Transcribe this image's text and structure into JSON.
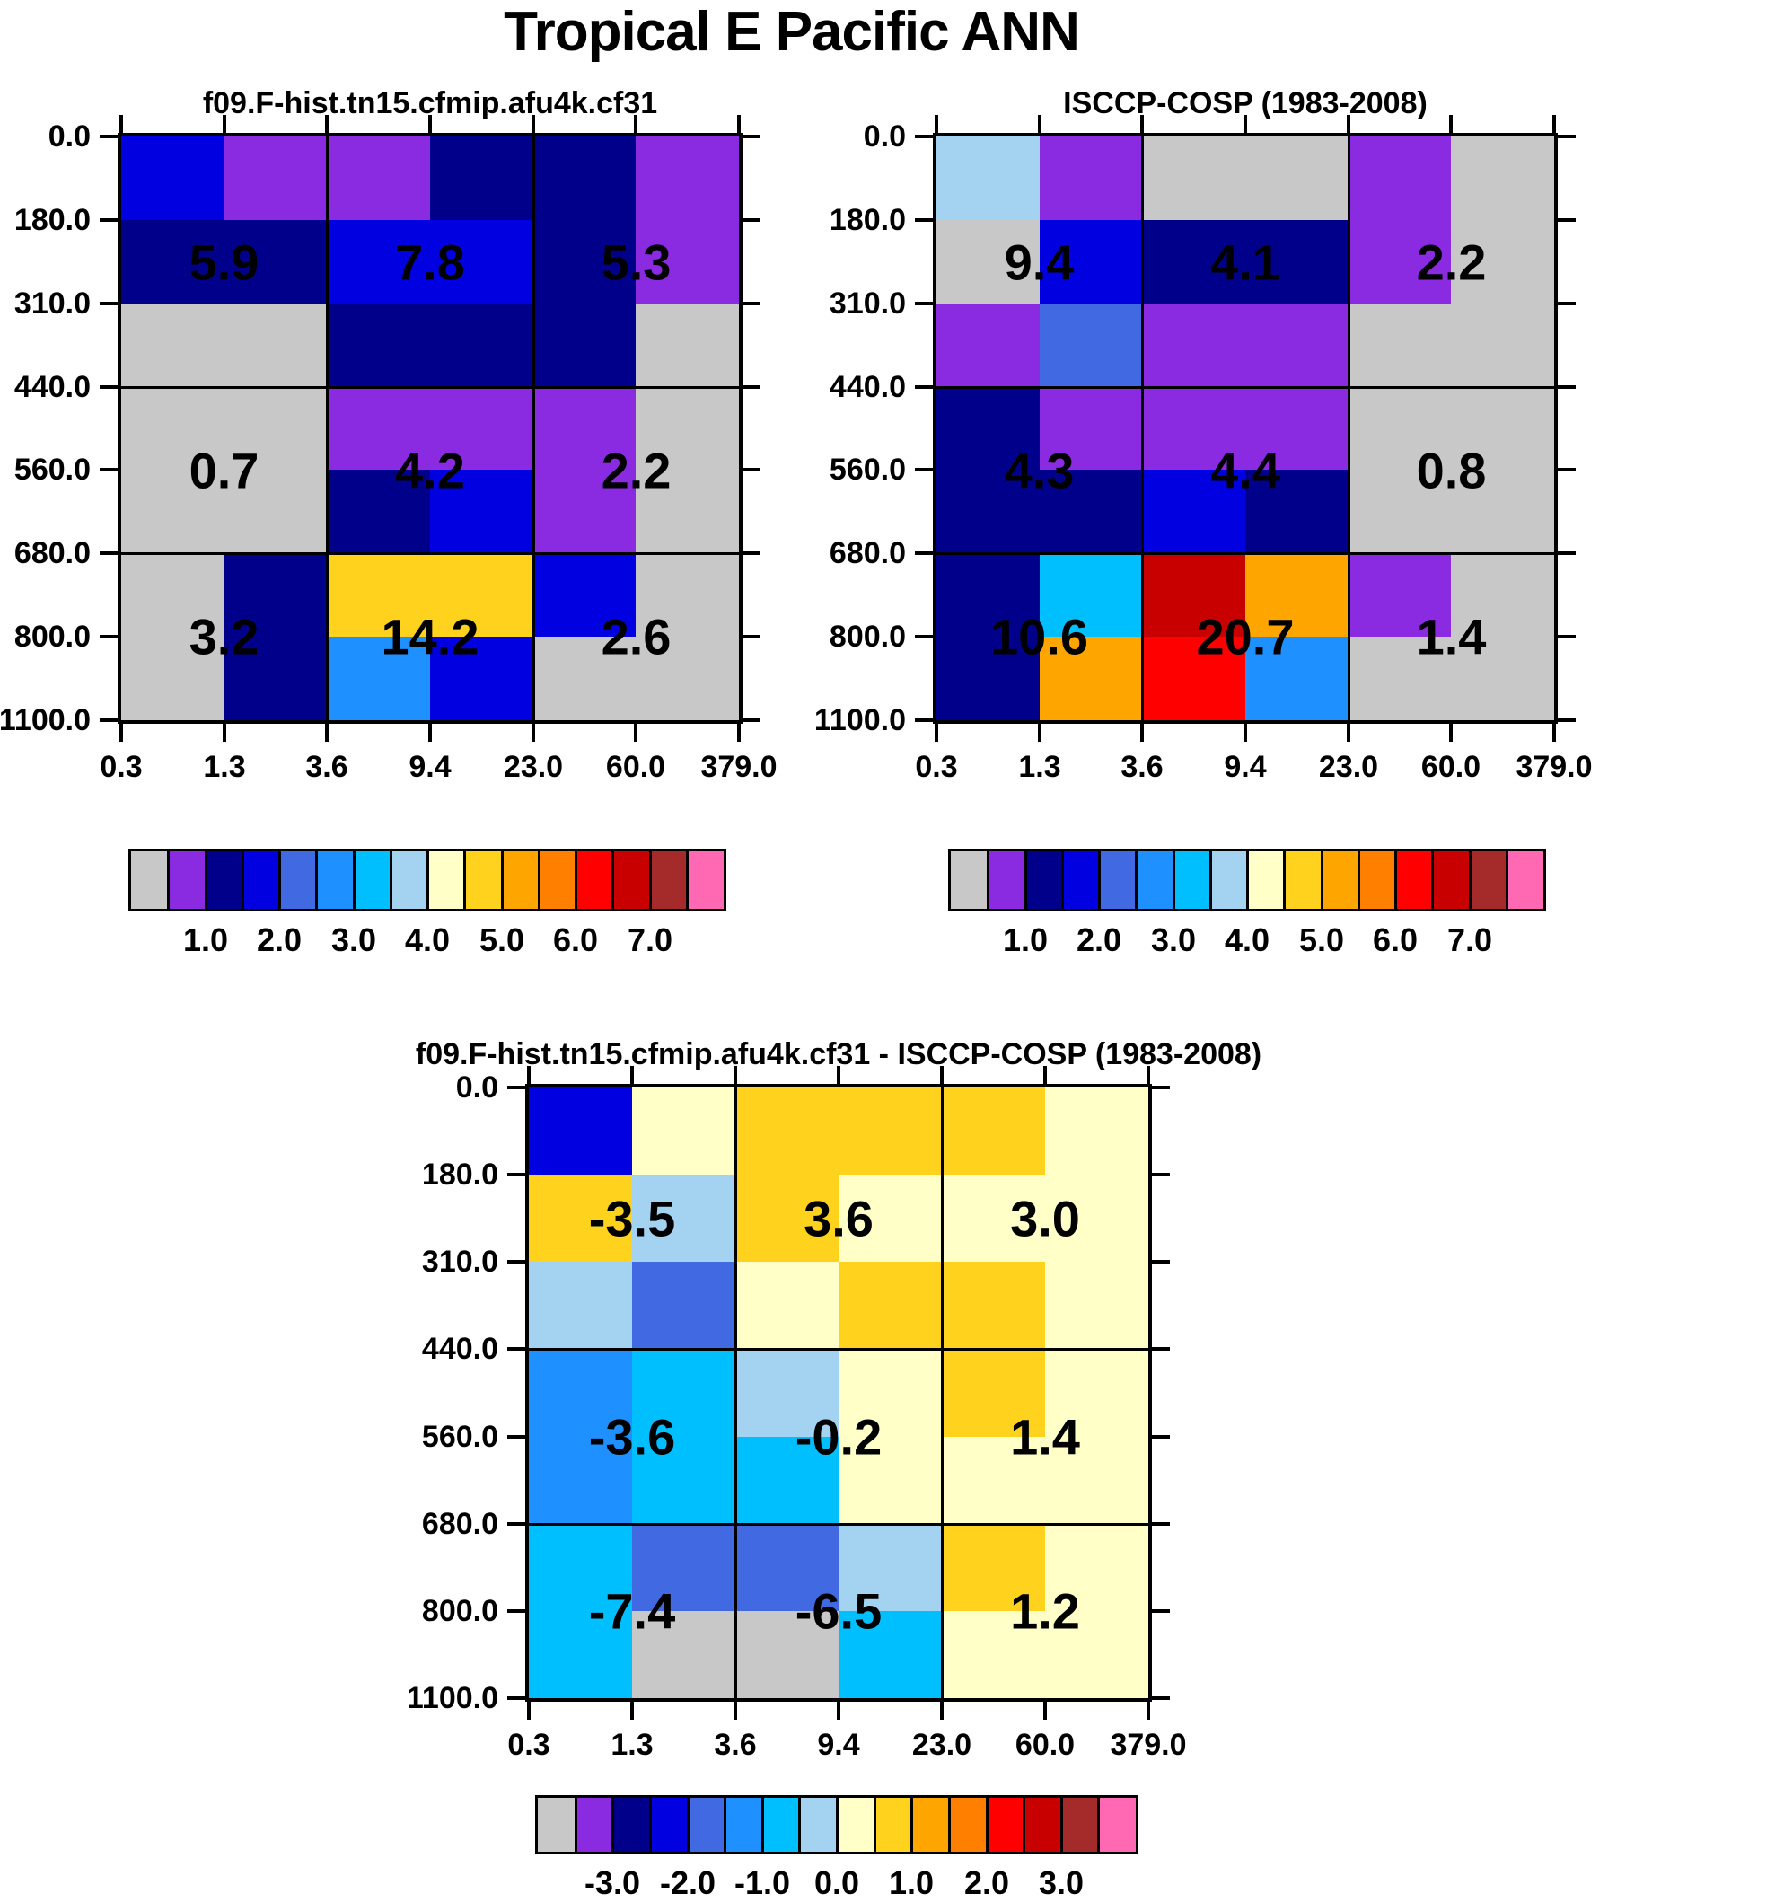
{
  "main_title": "Tropical E Pacific ANN",
  "palette": {
    "gray": "#C8C8C8",
    "purple": "#8A2BE2",
    "navy": "#00008B",
    "blue": "#0000E0",
    "royal": "#4169E1",
    "dodger": "#1E90FF",
    "deepsky": "#00BFFF",
    "lightblue": "#A4D3F2",
    "cream": "#FFFFC8",
    "gold": "#FFD21E",
    "orange": "#FFA500",
    "darkorange": "#FF8000",
    "red": "#FF0000",
    "darkred": "#C80000",
    "brown": "#A52A2A",
    "pink": "#FF69B4"
  },
  "colorbar_sequence": [
    "gray",
    "purple",
    "navy",
    "blue",
    "royal",
    "dodger",
    "deepsky",
    "lightblue",
    "cream",
    "gold",
    "orange",
    "darkorange",
    "red",
    "darkred",
    "brown",
    "pink"
  ],
  "chart_data": [
    {
      "id": "model",
      "type": "heatmap",
      "title": "f09.F-hist.tn15.cfmip.afu4k.cf31",
      "x_tick_labels": [
        "0.3",
        "1.3",
        "3.6",
        "9.4",
        "23.0",
        "60.0",
        "379.0"
      ],
      "y_tick_labels": [
        "0.0",
        "180.0",
        "310.0",
        "440.0",
        "560.0",
        "680.0",
        "800.0",
        "1100.0"
      ],
      "cell_colors": [
        [
          "blue",
          "purple",
          "purple",
          "navy",
          "navy",
          "purple"
        ],
        [
          "navy",
          "navy",
          "blue",
          "blue",
          "navy",
          "purple"
        ],
        [
          "gray",
          "gray",
          "navy",
          "navy",
          "navy",
          "gray"
        ],
        [
          "gray",
          "gray",
          "purple",
          "purple",
          "purple",
          "gray"
        ],
        [
          "gray",
          "gray",
          "navy",
          "blue",
          "purple",
          "gray"
        ],
        [
          "gray",
          "navy",
          "gold",
          "gold",
          "blue",
          "gray"
        ],
        [
          "gray",
          "navy",
          "dodger",
          "blue",
          "gray",
          "gray"
        ]
      ],
      "block_values": [
        [
          "5.9",
          "7.8",
          "5.3"
        ],
        [
          "0.7",
          "4.2",
          "2.2"
        ],
        [
          "3.2",
          "14.2",
          "2.6"
        ]
      ],
      "colorbar_labels": [
        "1.0",
        "2.0",
        "3.0",
        "4.0",
        "5.0",
        "6.0",
        "7.0"
      ]
    },
    {
      "id": "obs",
      "type": "heatmap",
      "title": "ISCCP-COSP (1983-2008)",
      "x_tick_labels": [
        "0.3",
        "1.3",
        "3.6",
        "9.4",
        "23.0",
        "60.0",
        "379.0"
      ],
      "y_tick_labels": [
        "0.0",
        "180.0",
        "310.0",
        "440.0",
        "560.0",
        "680.0",
        "800.0",
        "1100.0"
      ],
      "cell_colors": [
        [
          "lightblue",
          "purple",
          "gray",
          "gray",
          "purple",
          "gray"
        ],
        [
          "gray",
          "blue",
          "navy",
          "navy",
          "purple",
          "gray"
        ],
        [
          "purple",
          "royal",
          "purple",
          "purple",
          "gray",
          "gray"
        ],
        [
          "navy",
          "purple",
          "purple",
          "purple",
          "gray",
          "gray"
        ],
        [
          "navy",
          "navy",
          "blue",
          "navy",
          "gray",
          "gray"
        ],
        [
          "navy",
          "deepsky",
          "darkred",
          "orange",
          "purple",
          "gray"
        ],
        [
          "navy",
          "orange",
          "red",
          "dodger",
          "gray",
          "gray"
        ]
      ],
      "block_values": [
        [
          "9.4",
          "4.1",
          "2.2"
        ],
        [
          "4.3",
          "4.4",
          "0.8"
        ],
        [
          "10.6",
          "20.7",
          "1.4"
        ]
      ],
      "colorbar_labels": [
        "1.0",
        "2.0",
        "3.0",
        "4.0",
        "5.0",
        "6.0",
        "7.0"
      ]
    },
    {
      "id": "diff",
      "type": "heatmap",
      "title": "f09.F-hist.tn15.cfmip.afu4k.cf31 - ISCCP-COSP (1983-2008)",
      "x_tick_labels": [
        "0.3",
        "1.3",
        "3.6",
        "9.4",
        "23.0",
        "60.0",
        "379.0"
      ],
      "y_tick_labels": [
        "0.0",
        "180.0",
        "310.0",
        "440.0",
        "560.0",
        "680.0",
        "800.0",
        "1100.0"
      ],
      "cell_colors": [
        [
          "blue",
          "cream",
          "gold",
          "gold",
          "gold",
          "cream"
        ],
        [
          "gold",
          "lightblue",
          "gold",
          "cream",
          "cream",
          "cream"
        ],
        [
          "lightblue",
          "royal",
          "cream",
          "gold",
          "gold",
          "cream"
        ],
        [
          "dodger",
          "deepsky",
          "lightblue",
          "cream",
          "gold",
          "cream"
        ],
        [
          "dodger",
          "deepsky",
          "deepsky",
          "cream",
          "cream",
          "cream"
        ],
        [
          "deepsky",
          "royal",
          "royal",
          "lightblue",
          "gold",
          "cream"
        ],
        [
          "deepsky",
          "gray",
          "gray",
          "deepsky",
          "cream",
          "cream"
        ]
      ],
      "block_values": [
        [
          "-3.5",
          "3.6",
          "3.0"
        ],
        [
          "-3.6",
          "-0.2",
          "1.4"
        ],
        [
          "-7.4",
          "-6.5",
          "1.2"
        ]
      ],
      "colorbar_labels": [
        "-3.0",
        "-2.0",
        "-1.0",
        "0.0",
        "1.0",
        "2.0",
        "3.0"
      ]
    }
  ]
}
